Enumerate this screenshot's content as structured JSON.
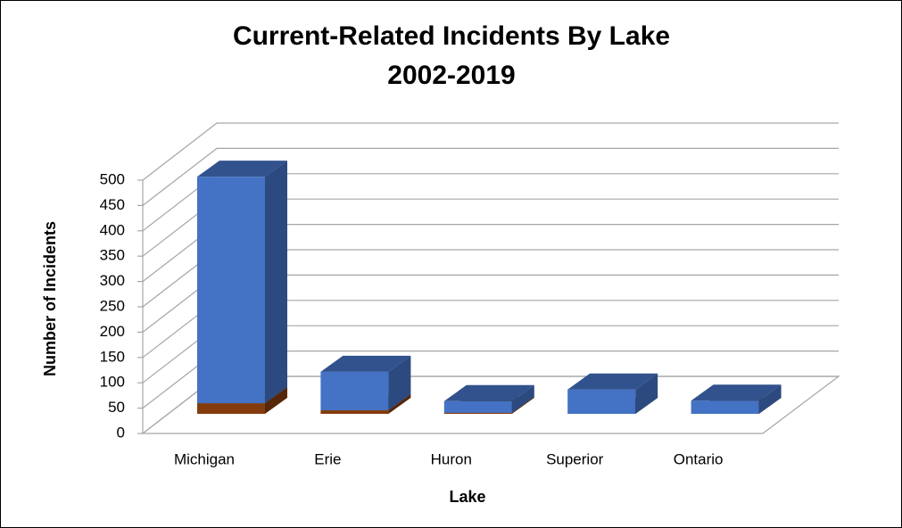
{
  "chart_data": {
    "type": "bar3d_stacked",
    "title": "Current-Related Incidents By Lake",
    "subtitle": "2002-2019",
    "x_label": "Lake",
    "y_label": "Number of Incidents",
    "categories": [
      "Michigan",
      "Erie",
      "Huron",
      "Superior",
      "Ontario"
    ],
    "series": [
      {
        "color": "#843c0c",
        "values": [
          21,
          7,
          2,
          0,
          0
        ]
      },
      {
        "color": "#4472c4",
        "values": [
          447,
          76,
          23,
          48,
          26
        ]
      }
    ],
    "ylim": [
      0,
      500
    ],
    "yticks": [
      0,
      50,
      100,
      150,
      200,
      250,
      300,
      350,
      400,
      450,
      500
    ],
    "grid": true
  }
}
